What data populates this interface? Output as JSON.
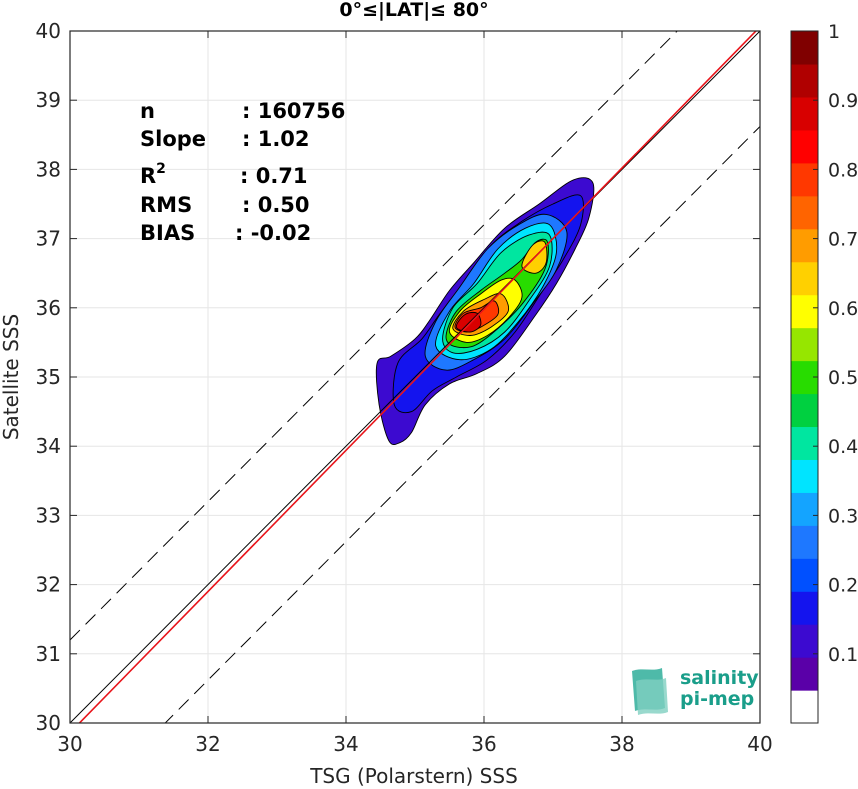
{
  "chart_data": {
    "type": "heatmap",
    "title": "0°≤|LAT|≤ 80°",
    "xlabel": "TSG (Polarstern) SSS",
    "ylabel": "Satellite SSS",
    "xlim": [
      30,
      40
    ],
    "ylim": [
      30,
      40
    ],
    "xticks": [
      30,
      32,
      34,
      36,
      38,
      40
    ],
    "yticks": [
      30,
      31,
      32,
      33,
      34,
      35,
      36,
      37,
      38,
      39,
      40
    ],
    "grid": true,
    "stats": {
      "n_label": "n",
      "n_value": ": 160756",
      "slope_label": "Slope",
      "slope_value": ": 1.02",
      "r2_label": "R",
      "r2_sup": "2",
      "r2_value": ": 0.71",
      "rms_label": "RMS",
      "rms_value": ": 0.50",
      "bias_label": "BIAS",
      "bias_value": ": -0.02"
    },
    "stats_values": {
      "n": 160756,
      "slope": 1.02,
      "r2": 0.71,
      "rms": 0.5,
      "bias": -0.02
    },
    "lines": [
      {
        "kind": "identity",
        "style": "solid",
        "color": "#000000",
        "slope": 1.0,
        "intercept": 0.0
      },
      {
        "kind": "regression",
        "style": "solid",
        "color": "#e8141a",
        "slope": 1.02,
        "intercept": -0.74
      },
      {
        "kind": "upper-bound",
        "style": "dashed",
        "color": "#000000",
        "slope": 1.0,
        "intercept": 1.2
      },
      {
        "kind": "lower-bound",
        "style": "dashed",
        "color": "#000000",
        "slope": 1.0,
        "intercept": -1.38
      }
    ],
    "colorbar": {
      "ticks": [
        "0.1",
        "0.2",
        "0.3",
        "0.4",
        "0.5",
        "0.6",
        "0.7",
        "0.8",
        "0.9",
        "1"
      ],
      "tick_values": [
        0.1,
        0.2,
        0.3,
        0.4,
        0.5,
        0.6,
        0.7,
        0.8,
        0.9,
        1.0
      ],
      "range": [
        0,
        1
      ],
      "colors": [
        "#ffffff",
        "#5a00a8",
        "#3c0ad0",
        "#1414ee",
        "#0050ff",
        "#1e78ff",
        "#14a4ff",
        "#00e4ff",
        "#00e6a0",
        "#00d040",
        "#28dc00",
        "#96e600",
        "#ffff00",
        "#ffd000",
        "#ff9c00",
        "#ff6400",
        "#ff3800",
        "#ff0000",
        "#d80000",
        "#b00000",
        "#800000"
      ]
    },
    "density_contours": [
      {
        "level": 0.05,
        "color": "#3c0ad0",
        "points": [
          [
            34.62,
            34.08
          ],
          [
            34.48,
            34.6
          ],
          [
            34.45,
            35.2
          ],
          [
            34.65,
            35.3
          ],
          [
            35.0,
            35.55
          ],
          [
            35.2,
            35.8
          ],
          [
            35.5,
            36.25
          ],
          [
            35.85,
            36.65
          ],
          [
            36.3,
            37.15
          ],
          [
            36.8,
            37.5
          ],
          [
            37.3,
            37.85
          ],
          [
            37.58,
            37.8
          ],
          [
            37.52,
            37.3
          ],
          [
            37.32,
            36.85
          ],
          [
            37.05,
            36.35
          ],
          [
            36.75,
            35.9
          ],
          [
            36.3,
            35.3
          ],
          [
            35.9,
            35.05
          ],
          [
            35.5,
            34.9
          ],
          [
            35.15,
            34.6
          ],
          [
            34.95,
            34.2
          ],
          [
            34.78,
            34.05
          ]
        ]
      },
      {
        "level": 0.15,
        "color": "#1414ee",
        "points": [
          [
            34.7,
            34.6
          ],
          [
            34.75,
            35.2
          ],
          [
            35.1,
            35.55
          ],
          [
            35.35,
            35.9
          ],
          [
            35.7,
            36.35
          ],
          [
            36.1,
            36.9
          ],
          [
            36.55,
            37.25
          ],
          [
            37.0,
            37.5
          ],
          [
            37.4,
            37.62
          ],
          [
            37.4,
            37.2
          ],
          [
            37.15,
            36.7
          ],
          [
            36.82,
            36.2
          ],
          [
            36.45,
            35.65
          ],
          [
            36.05,
            35.25
          ],
          [
            35.6,
            35.0
          ],
          [
            35.25,
            34.8
          ],
          [
            34.95,
            34.5
          ]
        ]
      },
      {
        "level": 0.25,
        "color": "#1e78ff",
        "points": [
          [
            35.15,
            35.3
          ],
          [
            35.3,
            35.8
          ],
          [
            35.65,
            36.3
          ],
          [
            36.05,
            36.85
          ],
          [
            36.5,
            37.2
          ],
          [
            36.9,
            37.35
          ],
          [
            37.2,
            37.1
          ],
          [
            37.05,
            36.55
          ],
          [
            36.7,
            36.05
          ],
          [
            36.3,
            35.55
          ],
          [
            35.85,
            35.25
          ],
          [
            35.45,
            35.1
          ]
        ]
      },
      {
        "level": 0.35,
        "color": "#00e4ff",
        "points": [
          [
            35.3,
            35.45
          ],
          [
            35.5,
            35.95
          ],
          [
            35.85,
            36.35
          ],
          [
            36.2,
            36.85
          ],
          [
            36.6,
            37.15
          ],
          [
            36.95,
            37.2
          ],
          [
            37.05,
            36.8
          ],
          [
            36.85,
            36.3
          ],
          [
            36.5,
            35.8
          ],
          [
            36.1,
            35.4
          ],
          [
            35.65,
            35.25
          ]
        ]
      },
      {
        "level": 0.45,
        "color": "#00e6a0",
        "points": [
          [
            35.4,
            35.55
          ],
          [
            35.55,
            36.0
          ],
          [
            35.9,
            36.35
          ],
          [
            36.25,
            36.8
          ],
          [
            36.65,
            37.05
          ],
          [
            36.95,
            37.05
          ],
          [
            36.95,
            36.6
          ],
          [
            36.65,
            36.1
          ],
          [
            36.3,
            35.65
          ],
          [
            35.9,
            35.4
          ],
          [
            35.55,
            35.35
          ]
        ]
      },
      {
        "level": 0.55,
        "color": "#28dc00",
        "points": [
          [
            35.45,
            35.6
          ],
          [
            35.6,
            35.95
          ],
          [
            35.95,
            36.25
          ],
          [
            36.3,
            36.5
          ],
          [
            36.55,
            36.7
          ],
          [
            36.75,
            36.95
          ],
          [
            36.92,
            36.95
          ],
          [
            36.88,
            36.55
          ],
          [
            36.55,
            36.05
          ],
          [
            36.2,
            35.7
          ],
          [
            35.85,
            35.45
          ],
          [
            35.55,
            35.45
          ]
        ]
      },
      {
        "level": 0.65,
        "color": "#ffff00",
        "points": [
          [
            35.5,
            35.65
          ],
          [
            35.65,
            35.95
          ],
          [
            35.95,
            36.2
          ],
          [
            36.25,
            36.4
          ],
          [
            36.45,
            36.4
          ],
          [
            36.55,
            36.15
          ],
          [
            36.35,
            35.85
          ],
          [
            36.05,
            35.6
          ],
          [
            35.75,
            35.5
          ]
        ]
      },
      {
        "level": 0.7,
        "color": "#ffd000",
        "points": [
          [
            36.55,
            36.6
          ],
          [
            36.7,
            36.9
          ],
          [
            36.88,
            36.95
          ],
          [
            36.9,
            36.65
          ],
          [
            36.75,
            36.5
          ]
        ]
      },
      {
        "level": 0.75,
        "color": "#ff9c00",
        "points": [
          [
            35.55,
            35.7
          ],
          [
            35.7,
            35.95
          ],
          [
            36.0,
            36.12
          ],
          [
            36.25,
            36.2
          ],
          [
            36.35,
            35.95
          ],
          [
            36.1,
            35.72
          ],
          [
            35.8,
            35.6
          ]
        ]
      },
      {
        "level": 0.85,
        "color": "#ff3800",
        "points": [
          [
            35.58,
            35.72
          ],
          [
            35.7,
            35.92
          ],
          [
            35.95,
            36.0
          ],
          [
            36.15,
            36.1
          ],
          [
            36.2,
            35.9
          ],
          [
            35.95,
            35.72
          ],
          [
            35.75,
            35.65
          ]
        ]
      },
      {
        "level": 0.92,
        "color": "#d80000",
        "points": [
          [
            35.6,
            35.72
          ],
          [
            35.72,
            35.9
          ],
          [
            35.9,
            35.92
          ],
          [
            35.95,
            35.75
          ],
          [
            35.8,
            35.65
          ]
        ]
      }
    ]
  },
  "logo": {
    "line1": "salinity",
    "line2": "pi-mep"
  },
  "colors": {
    "regression": "#e8141a",
    "logo": "#1a9e8a"
  }
}
